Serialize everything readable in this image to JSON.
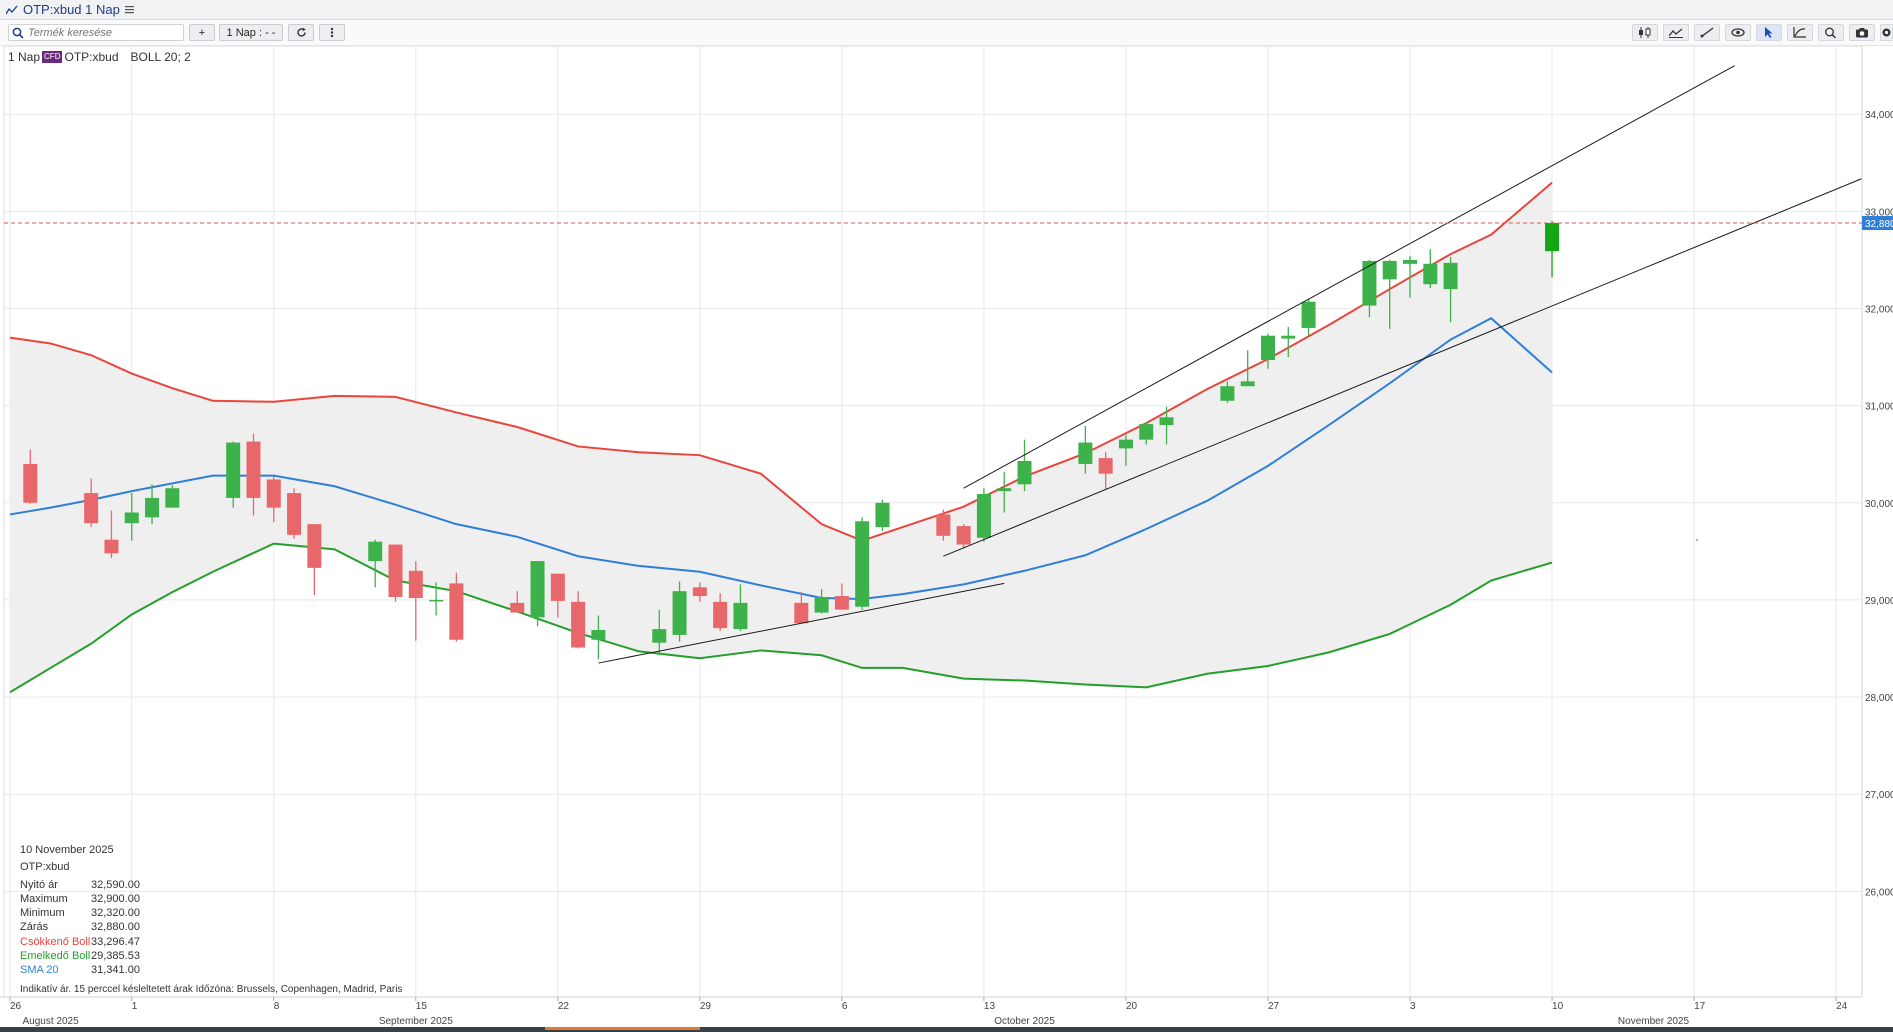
{
  "window": {
    "title": "OTP:xbud 1 Nap"
  },
  "toolbar": {
    "search_placeholder": "Termék keresése",
    "add_label": "+",
    "interval_label": "1 Nap : - -",
    "right_tools": [
      "candles-icon",
      "area-icon",
      "draw-line-icon",
      "eye-icon",
      "pointer-icon",
      "indicator-icon",
      "zoom-icon",
      "camera-icon",
      "settings-icon"
    ]
  },
  "legend": {
    "interval": "1 Nap",
    "badge": "CFD",
    "symbol": "OTP:xbud",
    "indicator": "BOLL 20; 2"
  },
  "info": {
    "date": "10 November 2025",
    "symbol": "OTP:xbud",
    "rows": [
      {
        "label": "Nyitó ár",
        "value": "32,590.00",
        "color": "#333333"
      },
      {
        "label": "Maximum",
        "value": "32,900.00",
        "color": "#333333"
      },
      {
        "label": "Minimum",
        "value": "32,320.00",
        "color": "#333333"
      },
      {
        "label": "Zárás",
        "value": "32,880.00",
        "color": "#333333"
      },
      {
        "label": "Csökkenő Boll",
        "value": "33,296.47",
        "color": "#e8453c"
      },
      {
        "label": "Emelkedő Boll",
        "value": "29,385.53",
        "color": "#22a02a"
      },
      {
        "label": "SMA 20",
        "value": "31,341.00",
        "color": "#2f7fd8"
      }
    ]
  },
  "footnote": "Indikatív ár. 15 perccel késleltetett árak    Időzóna: Brussels, Copenhagen, Madrid, Paris",
  "colors": {
    "up": "#3db14a",
    "up_last": "#14a614",
    "down": "#e8676a",
    "upper_band": "#e8453c",
    "lower_band": "#22a02a",
    "sma": "#2f7fd8",
    "band_fill": "#efefef",
    "price_tag": "#2f7fd8",
    "price_line": "#e05555"
  },
  "chart_data": {
    "type": "candlestick",
    "title": "",
    "y_ticks": [
      "26,000",
      "27,000",
      "28,000",
      "29,000",
      "30,000",
      "31,000",
      "32,000",
      "33,000",
      "34,000"
    ],
    "ylim": [
      25000,
      34100
    ],
    "last_price_label": "32,880",
    "last_price": 32880,
    "x_ticks": [
      {
        "day": 0,
        "label": "26"
      },
      {
        "day": 6,
        "label": "1"
      },
      {
        "day": 13,
        "label": "8"
      },
      {
        "day": 20,
        "label": "15"
      },
      {
        "day": 27,
        "label": "22"
      },
      {
        "day": 34,
        "label": "29"
      },
      {
        "day": 41,
        "label": "6"
      },
      {
        "day": 48,
        "label": "13"
      },
      {
        "day": 55,
        "label": "20"
      },
      {
        "day": 62,
        "label": "27"
      },
      {
        "day": 69,
        "label": "3"
      },
      {
        "day": 76,
        "label": "10"
      },
      {
        "day": 83,
        "label": "17"
      },
      {
        "day": 90,
        "label": "24"
      }
    ],
    "month_labels": [
      {
        "day": 2,
        "label": "August 2025"
      },
      {
        "day": 20,
        "label": "September 2025"
      },
      {
        "day": 50,
        "label": "October 2025"
      },
      {
        "day": 81,
        "label": "November 2025"
      }
    ],
    "x_axis_note": "x = calendar day number, day 0 = 26 August 2025",
    "candles": [
      {
        "x": 1,
        "o": 30400,
        "h": 30550,
        "l": 29990,
        "c": 30000
      },
      {
        "x": 4,
        "o": 30100,
        "h": 30250,
        "l": 29750,
        "c": 29790
      },
      {
        "x": 5,
        "o": 29620,
        "h": 29920,
        "l": 29430,
        "c": 29480
      },
      {
        "x": 6,
        "o": 29790,
        "h": 30100,
        "l": 29610,
        "c": 29900
      },
      {
        "x": 7,
        "o": 29850,
        "h": 30190,
        "l": 29780,
        "c": 30050
      },
      {
        "x": 8,
        "o": 29950,
        "h": 30180,
        "l": 29950,
        "c": 30150
      },
      {
        "x": 11,
        "o": 30050,
        "h": 30630,
        "l": 29950,
        "c": 30620
      },
      {
        "x": 12,
        "o": 30630,
        "h": 30710,
        "l": 29870,
        "c": 30050
      },
      {
        "x": 13,
        "o": 30240,
        "h": 30270,
        "l": 29800,
        "c": 29950
      },
      {
        "x": 14,
        "o": 30100,
        "h": 30150,
        "l": 29630,
        "c": 29670
      },
      {
        "x": 15,
        "o": 29780,
        "h": 29780,
        "l": 29050,
        "c": 29330
      },
      {
        "x": 18,
        "o": 29400,
        "h": 29620,
        "l": 29130,
        "c": 29600
      },
      {
        "x": 19,
        "o": 29570,
        "h": 29570,
        "l": 28980,
        "c": 29030
      },
      {
        "x": 20,
        "o": 29300,
        "h": 29400,
        "l": 28580,
        "c": 29020
      },
      {
        "x": 21,
        "o": 29000,
        "h": 29180,
        "l": 28840,
        "c": 29000
      },
      {
        "x": 22,
        "o": 29170,
        "h": 29280,
        "l": 28570,
        "c": 28590
      },
      {
        "x": 25,
        "o": 28970,
        "h": 29090,
        "l": 28890,
        "c": 28870
      },
      {
        "x": 26,
        "o": 28820,
        "h": 29400,
        "l": 28730,
        "c": 29400
      },
      {
        "x": 27,
        "o": 29270,
        "h": 29270,
        "l": 28820,
        "c": 28990
      },
      {
        "x": 28,
        "o": 28980,
        "h": 29090,
        "l": 28500,
        "c": 28510
      },
      {
        "x": 29,
        "o": 28590,
        "h": 28840,
        "l": 28390,
        "c": 28690
      },
      {
        "x": 32,
        "o": 28560,
        "h": 28900,
        "l": 28430,
        "c": 28700
      },
      {
        "x": 33,
        "o": 28640,
        "h": 29190,
        "l": 28570,
        "c": 29090
      },
      {
        "x": 34,
        "o": 29130,
        "h": 29180,
        "l": 28980,
        "c": 29040
      },
      {
        "x": 35,
        "o": 28980,
        "h": 29070,
        "l": 28680,
        "c": 28710
      },
      {
        "x": 36,
        "o": 28700,
        "h": 29160,
        "l": 28680,
        "c": 28970
      },
      {
        "x": 39,
        "o": 28970,
        "h": 29080,
        "l": 28760,
        "c": 28760
      },
      {
        "x": 40,
        "o": 28870,
        "h": 29110,
        "l": 28860,
        "c": 29030
      },
      {
        "x": 41,
        "o": 29040,
        "h": 29170,
        "l": 28920,
        "c": 28900
      },
      {
        "x": 42,
        "o": 28930,
        "h": 29850,
        "l": 28900,
        "c": 29810
      },
      {
        "x": 43,
        "o": 29750,
        "h": 30030,
        "l": 29710,
        "c": 30000
      },
      {
        "x": 46,
        "o": 29880,
        "h": 29930,
        "l": 29610,
        "c": 29660
      },
      {
        "x": 47,
        "o": 29760,
        "h": 29780,
        "l": 29530,
        "c": 29570
      },
      {
        "x": 48,
        "o": 29640,
        "h": 30150,
        "l": 29600,
        "c": 30090
      },
      {
        "x": 49,
        "o": 30120,
        "h": 30320,
        "l": 29900,
        "c": 30150
      },
      {
        "x": 50,
        "o": 30190,
        "h": 30650,
        "l": 30120,
        "c": 30430
      },
      {
        "x": 53,
        "o": 30400,
        "h": 30790,
        "l": 30300,
        "c": 30620
      },
      {
        "x": 54,
        "o": 30460,
        "h": 30520,
        "l": 30140,
        "c": 30300
      },
      {
        "x": 55,
        "o": 30560,
        "h": 30700,
        "l": 30380,
        "c": 30650
      },
      {
        "x": 56,
        "o": 30650,
        "h": 30830,
        "l": 30600,
        "c": 30810
      },
      {
        "x": 57,
        "o": 30800,
        "h": 30990,
        "l": 30600,
        "c": 30880
      },
      {
        "x": 60,
        "o": 31050,
        "h": 31250,
        "l": 31030,
        "c": 31200
      },
      {
        "x": 61,
        "o": 31200,
        "h": 31570,
        "l": 31200,
        "c": 31250
      },
      {
        "x": 62,
        "o": 31470,
        "h": 31740,
        "l": 31380,
        "c": 31720
      },
      {
        "x": 63,
        "o": 31690,
        "h": 31810,
        "l": 31500,
        "c": 31720
      },
      {
        "x": 64,
        "o": 31800,
        "h": 32100,
        "l": 31720,
        "c": 32070
      },
      {
        "x": 67,
        "o": 32030,
        "h": 32500,
        "l": 31910,
        "c": 32490
      },
      {
        "x": 68,
        "o": 32300,
        "h": 32500,
        "l": 31790,
        "c": 32490
      },
      {
        "x": 69,
        "o": 32460,
        "h": 32540,
        "l": 32110,
        "c": 32500
      },
      {
        "x": 70,
        "o": 32250,
        "h": 32610,
        "l": 32210,
        "c": 32460
      },
      {
        "x": 71,
        "o": 32200,
        "h": 32530,
        "l": 31860,
        "c": 32470
      },
      {
        "x": 76,
        "o": 32590,
        "h": 32900,
        "l": 32320,
        "c": 32880
      }
    ],
    "series": [
      {
        "name": "Csökkenő Boll",
        "color": "#e8453c",
        "x": [
          0,
          2,
          4,
          6,
          8,
          10,
          13,
          16,
          19,
          22,
          25,
          28,
          31,
          34,
          37,
          40,
          42,
          44,
          47,
          50,
          53,
          56,
          59,
          62,
          65,
          68,
          71,
          73,
          76
        ],
        "y": [
          31700,
          31640,
          31520,
          31330,
          31180,
          31050,
          31040,
          31100,
          31090,
          30930,
          30780,
          30580,
          30520,
          30490,
          30300,
          29780,
          29610,
          29750,
          29960,
          30270,
          30510,
          30820,
          31170,
          31480,
          31830,
          32200,
          32560,
          32760,
          33296
        ]
      },
      {
        "name": "SMA 20",
        "color": "#2f7fd8",
        "x": [
          0,
          2,
          4,
          6,
          8,
          10,
          13,
          16,
          19,
          22,
          25,
          28,
          31,
          34,
          37,
          40,
          42,
          44,
          47,
          50,
          53,
          56,
          59,
          62,
          65,
          68,
          71,
          73,
          76
        ],
        "y": [
          29880,
          29950,
          30030,
          30120,
          30200,
          30280,
          30280,
          30170,
          29980,
          29780,
          29650,
          29450,
          29350,
          29290,
          29150,
          29020,
          29010,
          29060,
          29160,
          29300,
          29460,
          29730,
          30020,
          30380,
          30800,
          31230,
          31680,
          31900,
          31341
        ]
      },
      {
        "name": "Emelkedő Boll",
        "color": "#22a02a",
        "x": [
          0,
          2,
          4,
          6,
          8,
          10,
          13,
          16,
          19,
          22,
          25,
          28,
          31,
          34,
          37,
          40,
          42,
          44,
          47,
          50,
          53,
          56,
          59,
          62,
          65,
          68,
          71,
          73,
          76
        ],
        "y": [
          28050,
          28300,
          28550,
          28850,
          29080,
          29290,
          29580,
          29520,
          29200,
          29090,
          28880,
          28660,
          28470,
          28400,
          28480,
          28430,
          28300,
          28300,
          28190,
          28170,
          28130,
          28100,
          28240,
          28320,
          28460,
          28650,
          28950,
          29200,
          29385
        ]
      }
    ],
    "trendlines": [
      {
        "x1": 29,
        "y1": 28350,
        "x2": 49,
        "y2": 29170
      },
      {
        "x1": 46,
        "y1": 29450,
        "x2": 92,
        "y2": 33400
      },
      {
        "x1": 47,
        "y1": 30150,
        "x2": 85,
        "y2": 34500
      }
    ],
    "grid": true
  }
}
